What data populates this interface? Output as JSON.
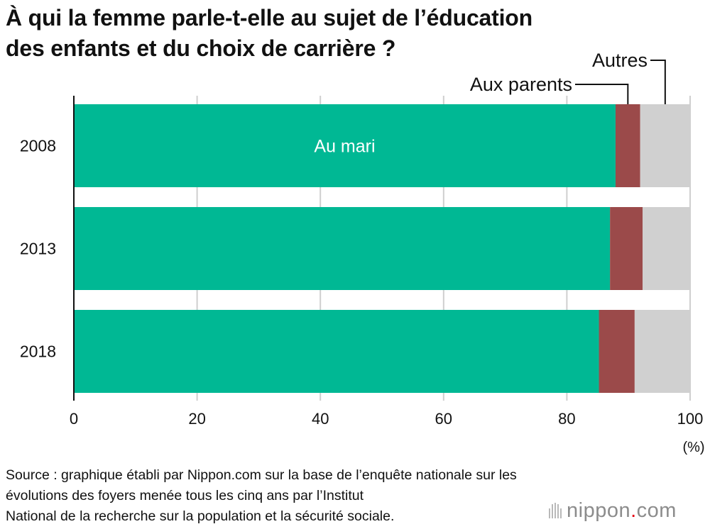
{
  "title_lines": [
    "À qui la femme parle-t-elle au sujet de l’éducation",
    "des enfants et du choix de carrière ?"
  ],
  "chart_data": {
    "type": "bar",
    "orientation": "horizontal",
    "stacked": true,
    "categories": [
      "2008",
      "2013",
      "2018"
    ],
    "series": [
      {
        "name": "Au mari",
        "values": [
          87.9,
          87.0,
          85.2
        ],
        "color": "#00b894"
      },
      {
        "name": "Aux parents",
        "values": [
          4.0,
          5.3,
          5.8
        ],
        "color": "#9b4a4a"
      },
      {
        "name": "Autres",
        "values": [
          8.1,
          7.7,
          9.0
        ],
        "color": "#d0d0d0"
      }
    ],
    "xlim": [
      0,
      100
    ],
    "xticks": [
      "0",
      "20",
      "40",
      "60",
      "80",
      "100"
    ],
    "xunit": "(%)",
    "grid": true,
    "legend": "callout-labels"
  },
  "source_lines": [
    "Source : graphique établi par Nippon.com sur la base de l’enquête nationale sur les",
    "évolutions des foyers menée tous les cinq ans par l’Institut",
    "National de la recherche sur la population et la sécurité sociale."
  ],
  "logo": {
    "name": "nippon",
    "dot": ".",
    "tld": "com"
  }
}
